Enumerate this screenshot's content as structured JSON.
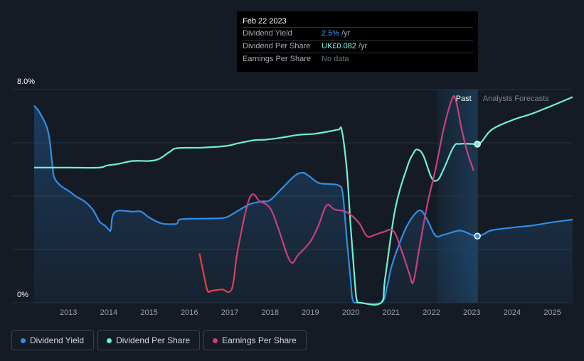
{
  "tooltip": {
    "date": "Feb 22 2023",
    "rows": [
      {
        "label": "Dividend Yield",
        "value": "2.5%",
        "unit": "/yr",
        "color": "#3b9cf0"
      },
      {
        "label": "Dividend Per Share",
        "value": "UK£0.082",
        "unit": "/yr",
        "color": "#7ff5e0"
      },
      {
        "label": "Earnings Per Share",
        "value": "No data",
        "unit": "",
        "color": "#6a707a"
      }
    ]
  },
  "legend": [
    {
      "label": "Dividend Yield",
      "color": "#2f8ee6"
    },
    {
      "label": "Dividend Per Share",
      "color": "#6ef0d6"
    },
    {
      "label": "Earnings Per Share",
      "color": "#c8407e"
    }
  ],
  "colors": {
    "background": "#151b24",
    "grid": "#2a313b",
    "yield": "#2f8ee6",
    "dps": "#6ef0d6",
    "eps": "#c8407e",
    "eps_low": "#e8403c",
    "past_band": "#1b3a55"
  },
  "chart_data": {
    "type": "line",
    "title": "",
    "y_axis": {
      "min_label": "0%",
      "max_label": "8.0%",
      "ylim": [
        0,
        8
      ]
    },
    "x_ticks": [
      "2013",
      "2014",
      "2015",
      "2016",
      "2017",
      "2018",
      "2019",
      "2020",
      "2021",
      "2022",
      "2023",
      "2024",
      "2025"
    ],
    "xlim": [
      2012.15,
      2025.5
    ],
    "regions": {
      "past_label": "Past",
      "forecast_label": "Analysts Forecasts",
      "past_start": 2022.15,
      "forecast_start": 2023.15
    },
    "series": [
      {
        "name": "Dividend Yield",
        "key": "yield",
        "filled": true,
        "points": [
          [
            2012.15,
            7.4
          ],
          [
            2012.3,
            7.1
          ],
          [
            2012.5,
            6.4
          ],
          [
            2012.6,
            5.2
          ],
          [
            2012.65,
            4.7
          ],
          [
            2012.8,
            4.4
          ],
          [
            2013.0,
            4.2
          ],
          [
            2013.2,
            3.98
          ],
          [
            2013.4,
            3.8
          ],
          [
            2013.6,
            3.5
          ],
          [
            2013.75,
            3.1
          ],
          [
            2013.8,
            3.0
          ],
          [
            2013.9,
            2.9
          ],
          [
            2014.0,
            2.75
          ],
          [
            2014.05,
            2.74
          ],
          [
            2014.15,
            3.4
          ],
          [
            2014.6,
            3.42
          ],
          [
            2014.8,
            3.42
          ],
          [
            2015.0,
            3.2
          ],
          [
            2015.3,
            2.98
          ],
          [
            2015.6,
            2.95
          ],
          [
            2015.7,
            2.98
          ],
          [
            2015.75,
            3.12
          ],
          [
            2016.0,
            3.15
          ],
          [
            2016.5,
            3.16
          ],
          [
            2016.9,
            3.2
          ],
          [
            2017.2,
            3.45
          ],
          [
            2017.5,
            3.7
          ],
          [
            2017.8,
            3.8
          ],
          [
            2018.0,
            3.85
          ],
          [
            2018.3,
            4.3
          ],
          [
            2018.6,
            4.75
          ],
          [
            2018.8,
            4.88
          ],
          [
            2018.95,
            4.77
          ],
          [
            2019.2,
            4.5
          ],
          [
            2019.5,
            4.45
          ],
          [
            2019.7,
            4.4
          ],
          [
            2019.8,
            4.1
          ],
          [
            2019.9,
            2.4
          ],
          [
            2020.0,
            0.8
          ],
          [
            2020.05,
            0.1
          ],
          [
            2020.2,
            0.0
          ],
          [
            2020.75,
            0.0
          ],
          [
            2020.9,
            0.6
          ],
          [
            2021.0,
            1.3
          ],
          [
            2021.2,
            2.2
          ],
          [
            2021.4,
            2.9
          ],
          [
            2021.6,
            3.35
          ],
          [
            2021.75,
            3.45
          ],
          [
            2021.9,
            3.1
          ],
          [
            2022.1,
            2.52
          ],
          [
            2022.3,
            2.55
          ],
          [
            2022.6,
            2.68
          ],
          [
            2022.75,
            2.7
          ],
          [
            2023.0,
            2.55
          ],
          [
            2023.14,
            2.5
          ],
          [
            2023.3,
            2.58
          ],
          [
            2023.5,
            2.72
          ],
          [
            2024.0,
            2.82
          ],
          [
            2024.5,
            2.9
          ],
          [
            2025.0,
            3.02
          ],
          [
            2025.5,
            3.12
          ]
        ],
        "marker": [
          2023.14,
          2.5
        ]
      },
      {
        "name": "Dividend Per Share",
        "key": "dps",
        "filled": false,
        "points": [
          [
            2012.15,
            5.07
          ],
          [
            2013.0,
            5.07
          ],
          [
            2013.75,
            5.07
          ],
          [
            2013.95,
            5.15
          ],
          [
            2014.2,
            5.2
          ],
          [
            2014.6,
            5.32
          ],
          [
            2015.0,
            5.32
          ],
          [
            2015.25,
            5.4
          ],
          [
            2015.5,
            5.65
          ],
          [
            2015.7,
            5.8
          ],
          [
            2016.3,
            5.82
          ],
          [
            2016.9,
            5.88
          ],
          [
            2017.2,
            5.98
          ],
          [
            2017.6,
            6.1
          ],
          [
            2017.9,
            6.12
          ],
          [
            2018.3,
            6.2
          ],
          [
            2018.7,
            6.3
          ],
          [
            2019.1,
            6.34
          ],
          [
            2019.5,
            6.44
          ],
          [
            2019.7,
            6.5
          ],
          [
            2019.78,
            6.45
          ],
          [
            2019.9,
            5.0
          ],
          [
            2020.0,
            2.8
          ],
          [
            2020.1,
            0.8
          ],
          [
            2020.15,
            0.1
          ],
          [
            2020.25,
            0.0
          ],
          [
            2020.75,
            0.0
          ],
          [
            2020.85,
            0.9
          ],
          [
            2021.1,
            3.5
          ],
          [
            2021.4,
            5.1
          ],
          [
            2021.55,
            5.6
          ],
          [
            2021.65,
            5.75
          ],
          [
            2021.8,
            5.52
          ],
          [
            2022.0,
            4.7
          ],
          [
            2022.15,
            4.6
          ],
          [
            2022.3,
            5.0
          ],
          [
            2022.55,
            5.85
          ],
          [
            2022.7,
            5.96
          ],
          [
            2023.0,
            5.96
          ],
          [
            2023.14,
            5.95
          ],
          [
            2023.25,
            6.05
          ],
          [
            2023.5,
            6.5
          ],
          [
            2024.0,
            6.85
          ],
          [
            2024.5,
            7.1
          ],
          [
            2025.0,
            7.4
          ],
          [
            2025.5,
            7.72
          ]
        ],
        "marker": [
          2023.14,
          5.95
        ]
      },
      {
        "name": "Earnings Per Share",
        "key": "eps",
        "segments": [
          [
            [
              2016.25,
              1.85
            ],
            [
              2016.35,
              1.1
            ],
            [
              2016.45,
              0.45
            ],
            [
              2016.55,
              0.45
            ],
            [
              2016.8,
              0.5
            ],
            [
              2017.05,
              0.52
            ],
            [
              2017.2,
              2.0
            ],
            [
              2017.5,
              3.95
            ],
            [
              2017.75,
              3.8
            ],
            [
              2018.0,
              3.55
            ],
            [
              2018.2,
              2.8
            ],
            [
              2018.5,
              1.55
            ],
            [
              2018.7,
              1.8
            ],
            [
              2019.0,
              2.3
            ],
            [
              2019.2,
              2.9
            ],
            [
              2019.4,
              3.65
            ],
            [
              2019.6,
              3.5
            ],
            [
              2019.9,
              3.4
            ],
            [
              2020.2,
              3.0
            ],
            [
              2020.4,
              2.5
            ],
            [
              2020.6,
              2.55
            ],
            [
              2020.8,
              2.65
            ],
            [
              2021.05,
              2.7
            ],
            [
              2021.25,
              2.0
            ],
            [
              2021.45,
              1.1
            ],
            [
              2021.55,
              0.78
            ],
            [
              2021.7,
              2.05
            ],
            [
              2021.9,
              3.7
            ],
            [
              2022.1,
              5.0
            ],
            [
              2022.3,
              6.5
            ],
            [
              2022.5,
              7.6
            ],
            [
              2022.6,
              7.62
            ],
            [
              2022.75,
              6.5
            ],
            [
              2022.9,
              5.6
            ],
            [
              2023.05,
              4.95
            ]
          ]
        ]
      }
    ]
  }
}
